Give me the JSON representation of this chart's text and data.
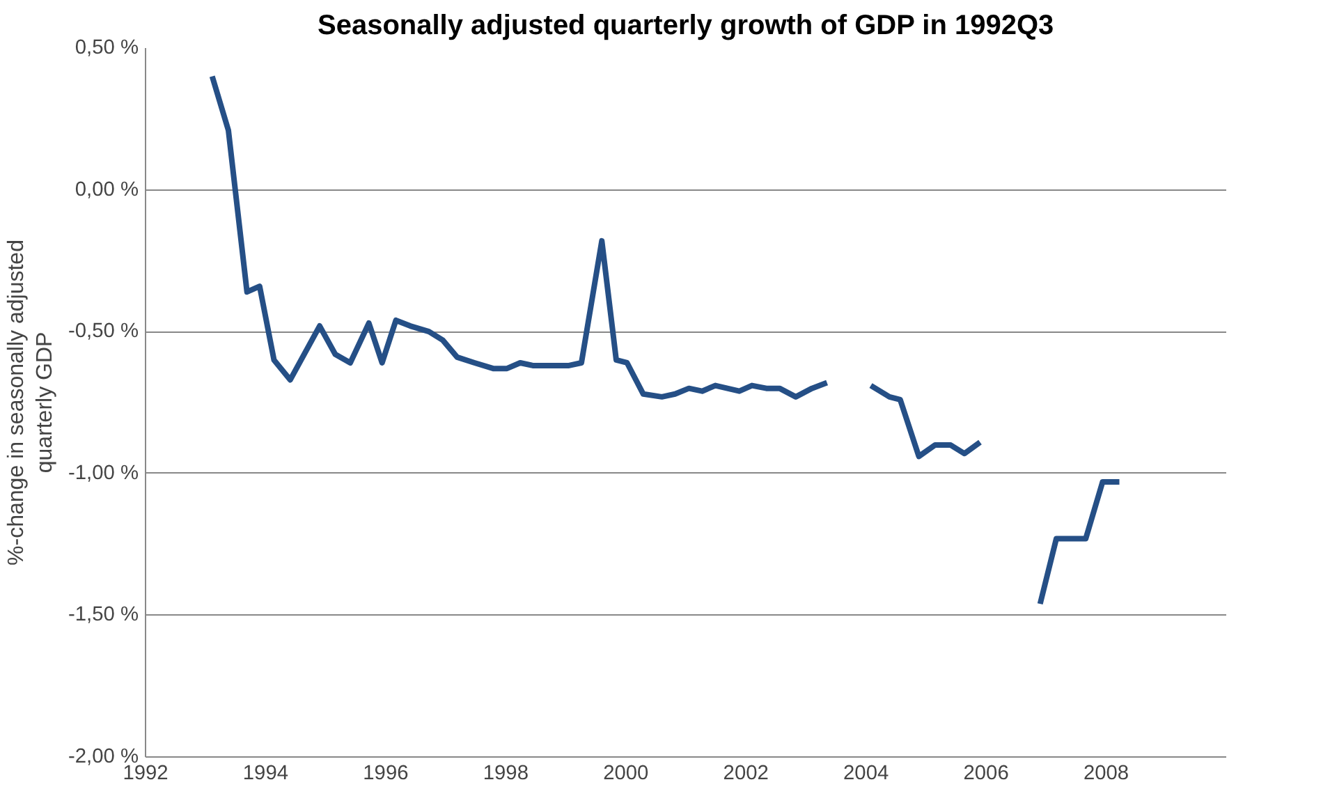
{
  "chart_data": {
    "type": "line",
    "title": "Seasonally adjusted quarterly growth of GDP in 1992Q3",
    "ylabel": "%-change in seasonally adjusted\nquarterly GDP",
    "x": [
      1993.11,
      1993.38,
      1993.69,
      1993.9,
      1994.14,
      1994.41,
      1994.9,
      1995.16,
      1995.41,
      1995.72,
      1995.94,
      1996.17,
      1996.41,
      1996.72,
      1996.95,
      1997.19,
      1997.48,
      1997.79,
      1998.02,
      1998.24,
      1998.46,
      1998.75,
      1999.04,
      1999.26,
      1999.6,
      1999.84,
      2000.02,
      2000.29,
      2000.6,
      2000.82,
      2001.05,
      2001.27,
      2001.49,
      2001.69,
      2001.89,
      2002.1,
      2002.34,
      2002.56,
      2002.83,
      2003.1,
      2003.35,
      2003.7,
      2004.08,
      2004.39,
      2004.57,
      2004.88,
      2005.15,
      2005.41,
      2005.64,
      2005.9,
      2006.4,
      2006.9,
      2007.17,
      2007.66,
      2007.94,
      2008.22
    ],
    "series": [
      {
        "color": "#254f86",
        "values": [
          0.4,
          0.21,
          -0.36,
          -0.34,
          -0.6,
          -0.67,
          -0.48,
          -0.58,
          -0.61,
          -0.47,
          -0.61,
          -0.46,
          -0.48,
          -0.5,
          -0.53,
          -0.59,
          -0.61,
          -0.63,
          -0.63,
          -0.61,
          -0.62,
          -0.62,
          -0.62,
          -0.61,
          -0.18,
          -0.6,
          -0.61,
          -0.72,
          -0.73,
          -0.72,
          -0.7,
          -0.71,
          -0.69,
          -0.7,
          -0.71,
          -0.69,
          -0.7,
          -0.7,
          -0.73,
          -0.7,
          -0.68,
          null,
          -0.69,
          -0.73,
          -0.74,
          -0.94,
          -0.9,
          -0.9,
          -0.93,
          -0.89,
          null,
          -1.46,
          -1.23,
          -1.23,
          -1.03,
          -1.03
        ]
      }
    ],
    "xlim": [
      1992,
      2010
    ],
    "xticks": [
      1992,
      1994,
      1996,
      1998,
      2000,
      2002,
      2004,
      2006,
      2008
    ],
    "ylim": [
      -2,
      0.5
    ],
    "yticks": [
      {
        "value": -2,
        "label": "-2,00 %"
      },
      {
        "value": -1.5,
        "label": "-1,50 %"
      },
      {
        "value": -1,
        "label": "-1,00 %"
      },
      {
        "value": -0.5,
        "label": "-0,50 %"
      },
      {
        "value": 0,
        "label": "0,00 %"
      },
      {
        "value": 0.5,
        "label": "0,50 %"
      }
    ],
    "grid": "y",
    "marker": "none",
    "line_style": "solid"
  }
}
